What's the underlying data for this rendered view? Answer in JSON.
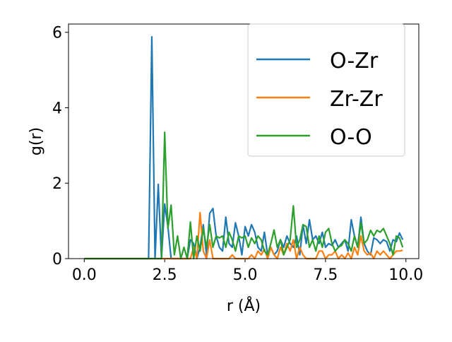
{
  "chart_data": {
    "type": "line",
    "xlabel": "r (Å)",
    "ylabel": "g(r)",
    "x": [
      0,
      0.1,
      0.2,
      0.3,
      0.4,
      0.5,
      0.6,
      0.7,
      0.8,
      0.9,
      1,
      1.1,
      1.2,
      1.3,
      1.4,
      1.5,
      1.6,
      1.7,
      1.8,
      1.9,
      2,
      2.1,
      2.2,
      2.3,
      2.4,
      2.5,
      2.6,
      2.7,
      2.8,
      2.9,
      3,
      3.1,
      3.2,
      3.3,
      3.4,
      3.5,
      3.6,
      3.7,
      3.8,
      3.9,
      4,
      4.1,
      4.2,
      4.3,
      4.4,
      4.5,
      4.6,
      4.7,
      4.8,
      4.9,
      5,
      5.1,
      5.2,
      5.3,
      5.4,
      5.5,
      5.6,
      5.7,
      5.8,
      5.9,
      6,
      6.1,
      6.2,
      6.3,
      6.4,
      6.5,
      6.6,
      6.7,
      6.8,
      6.9,
      7,
      7.1,
      7.2,
      7.3,
      7.4,
      7.5,
      7.6,
      7.7,
      7.8,
      7.9,
      8,
      8.1,
      8.2,
      8.3,
      8.4,
      8.5,
      8.6,
      8.7,
      8.8,
      8.9,
      9,
      9.1,
      9.2,
      9.3,
      9.4,
      9.5,
      9.6,
      9.7,
      9.8,
      9.9
    ],
    "series": [
      {
        "name": "O-Zr",
        "color": "#1f77b4",
        "values": [
          0,
          0,
          0,
          0,
          0,
          0,
          0,
          0,
          0,
          0,
          0,
          0,
          0,
          0,
          0,
          0,
          0,
          0,
          0,
          0,
          0,
          5.88,
          0,
          1.97,
          0,
          1.45,
          0.85,
          0,
          0,
          0,
          0,
          0,
          0,
          0.5,
          0.4,
          0,
          0.3,
          0.9,
          0.1,
          1.2,
          1.33,
          0.6,
          0.3,
          0.2,
          1.1,
          0.4,
          0.3,
          0.95,
          0.6,
          0.1,
          0.85,
          0.6,
          0.9,
          0.7,
          0.3,
          0.2,
          0.7,
          0.1,
          0.3,
          0.1,
          0.2,
          0.5,
          0.3,
          0.6,
          0.4,
          0.3,
          0.6,
          0.1,
          0.9,
          0.4,
          1.03,
          0.5,
          0.6,
          0.4,
          0.7,
          0.3,
          0.4,
          0.35,
          0.5,
          0.3,
          0.4,
          0.5,
          0.2,
          1.03,
          0.6,
          0.3,
          1.1,
          0.4,
          0.2,
          0.1,
          0.55,
          0.5,
          0.4,
          0.5,
          0.45,
          0.2,
          0.5,
          0.45,
          0.68,
          0.5
        ]
      },
      {
        "name": "Zr-Zr",
        "color": "#ff7f0e",
        "values": [
          0,
          0,
          0,
          0,
          0,
          0,
          0,
          0,
          0,
          0,
          0,
          0,
          0,
          0,
          0,
          0,
          0,
          0,
          0,
          0,
          0,
          0,
          0,
          0,
          0,
          0,
          0,
          0,
          0,
          0,
          0,
          0,
          0,
          0,
          0.3,
          0,
          1.22,
          0.2,
          0,
          0.5,
          0,
          0,
          0,
          0,
          0,
          0,
          0.1,
          0,
          0,
          0,
          0,
          0,
          0.1,
          0,
          0.2,
          0.1,
          0.25,
          0,
          0.3,
          0.1,
          0,
          0.3,
          0.1,
          0.4,
          0.2,
          0.5,
          0,
          0.3,
          0.1,
          0,
          0,
          0,
          0,
          0.2,
          0.2,
          0,
          0.1,
          0.1,
          0.2,
          0,
          0.1,
          0,
          0.15,
          0,
          0.3,
          0.1,
          0.6,
          0.2,
          0.1,
          0.15,
          0,
          0.2,
          0.1,
          0.2,
          0.1,
          0,
          0.1,
          0.2,
          0.2,
          0.22
        ]
      },
      {
        "name": "O-O",
        "color": "#2ca02c",
        "values": [
          0,
          0,
          0,
          0,
          0,
          0,
          0,
          0,
          0,
          0,
          0,
          0,
          0,
          0,
          0,
          0,
          0,
          0,
          0,
          0,
          0,
          0,
          0,
          0,
          0,
          3.35,
          0.8,
          1.42,
          0.1,
          0.6,
          0,
          0.3,
          0,
          0.97,
          0,
          0.6,
          0.2,
          0.8,
          0.3,
          0.9,
          0.3,
          0.6,
          0.55,
          0.6,
          0.3,
          0.7,
          0.5,
          0.2,
          0.6,
          0.55,
          0.6,
          0.3,
          0.55,
          0.4,
          0.6,
          0.5,
          0.2,
          0.1,
          0.4,
          0.76,
          0.3,
          0.5,
          0.1,
          0.3,
          0.5,
          1.4,
          0.3,
          0.5,
          0.9,
          0.85,
          0.3,
          0.5,
          0.2,
          0.6,
          0.3,
          0.7,
          0.8,
          0.4,
          0.2,
          0.3,
          0.35,
          0.5,
          0.4,
          0.2,
          0.6,
          0.3,
          0.95,
          0.4,
          0.5,
          0.75,
          0.6,
          0.75,
          0.7,
          0.8,
          0.6,
          0.4,
          0.1,
          0.6,
          0.55,
          0.3
        ]
      }
    ],
    "xlim": [
      -0.49,
      10.4
    ],
    "ylim": [
      0,
      6.22
    ],
    "xticks": [
      {
        "value": 0,
        "label": "0.0"
      },
      2.5,
      {
        "value": 5,
        "label": "5.0"
      },
      7.5,
      {
        "value": 10,
        "label": "10.0"
      }
    ],
    "yticks": [
      0,
      2,
      4,
      6
    ],
    "legend": "upper right"
  }
}
